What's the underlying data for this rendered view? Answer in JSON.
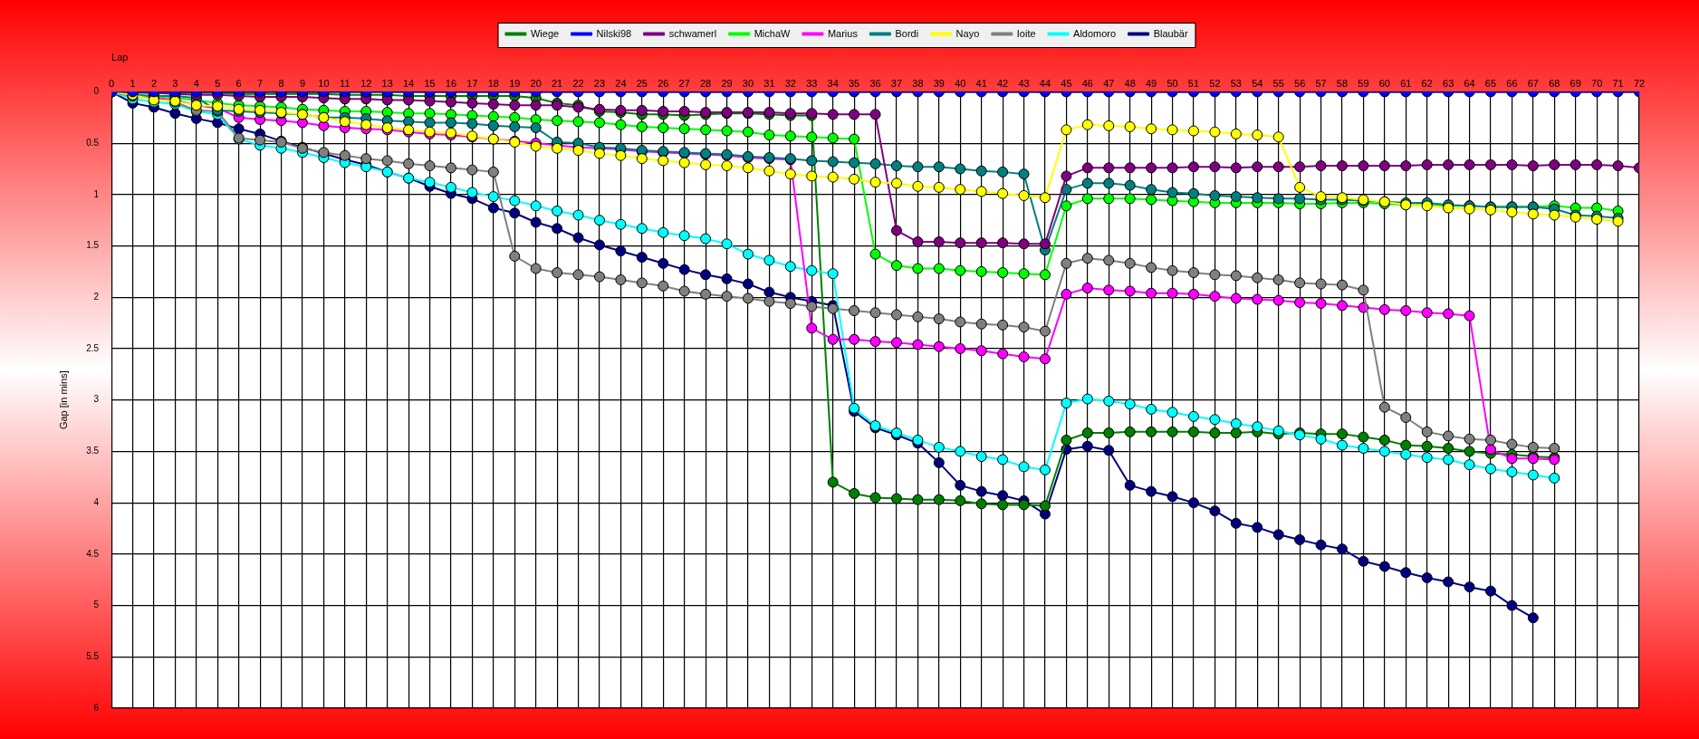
{
  "chart_data": {
    "type": "line",
    "xlabel": "Lap",
    "ylabel": "Gap [in mins]",
    "x": [
      0,
      1,
      2,
      3,
      4,
      5,
      6,
      7,
      8,
      9,
      10,
      11,
      12,
      13,
      14,
      15,
      16,
      17,
      18,
      19,
      20,
      21,
      22,
      23,
      24,
      25,
      26,
      27,
      28,
      29,
      30,
      31,
      32,
      33,
      34,
      35,
      36,
      37,
      38,
      39,
      40,
      41,
      42,
      43,
      44,
      45,
      46,
      47,
      48,
      49,
      50,
      51,
      52,
      53,
      54,
      55,
      56,
      57,
      58,
      59,
      60,
      61,
      62,
      63,
      64,
      65,
      66,
      67,
      68,
      69,
      70,
      71,
      72
    ],
    "xlim": [
      0,
      72
    ],
    "xticks": [
      0,
      1,
      2,
      3,
      4,
      5,
      6,
      7,
      8,
      9,
      10,
      11,
      12,
      13,
      14,
      15,
      16,
      17,
      18,
      19,
      20,
      21,
      22,
      23,
      24,
      25,
      26,
      27,
      28,
      29,
      30,
      31,
      32,
      33,
      34,
      35,
      36,
      37,
      38,
      39,
      40,
      41,
      42,
      43,
      44,
      45,
      46,
      47,
      48,
      49,
      50,
      51,
      52,
      53,
      54,
      55,
      56,
      57,
      58,
      59,
      60,
      61,
      62,
      63,
      64,
      65,
      66,
      67,
      68,
      69,
      70,
      71,
      72
    ],
    "ylim": [
      6,
      0
    ],
    "yticks": [
      0,
      0.5,
      1,
      1.5,
      2,
      2.5,
      3,
      3.5,
      4,
      4.5,
      5,
      5.5,
      6
    ],
    "grid": true,
    "legend": "top",
    "marker": "circle",
    "line_style": "solid",
    "series": [
      {
        "name": "Wiege",
        "color": "#008000",
        "values": [
          0,
          0.01,
          0.01,
          0.01,
          0.01,
          0.01,
          0.02,
          0.02,
          0.02,
          0.02,
          0.02,
          0.03,
          0.03,
          0.03,
          0.04,
          0.04,
          0.04,
          0.04,
          0.04,
          0.04,
          0.06,
          0.11,
          0.13,
          0.19,
          0.2,
          0.22,
          0.22,
          0.23,
          0.22,
          0.21,
          0.21,
          0.22,
          0.23,
          0.23,
          3.8,
          3.91,
          3.95,
          3.96,
          3.97,
          3.97,
          3.98,
          4.01,
          4.02,
          4.02,
          4.03,
          3.39,
          3.32,
          3.32,
          3.31,
          3.31,
          3.31,
          3.31,
          3.32,
          3.32,
          3.31,
          3.33,
          3.32,
          3.33,
          3.33,
          3.36,
          3.39,
          3.44,
          3.45,
          3.47,
          3.5,
          3.52,
          3.53,
          3.55,
          3.56,
          null,
          null,
          null,
          null
        ]
      },
      {
        "name": "Nilski98",
        "color": "#0000ff",
        "values": [
          0,
          0,
          0,
          0,
          0,
          0,
          0,
          0,
          0,
          0,
          0,
          0,
          0,
          0,
          0,
          0,
          0,
          0,
          0,
          0,
          0,
          0,
          0,
          0,
          0,
          0,
          0,
          0,
          0,
          0,
          0,
          0,
          0,
          0,
          0,
          0,
          0,
          0,
          0,
          0,
          0,
          0,
          0,
          0,
          0,
          0,
          0,
          0,
          0,
          0,
          0,
          0,
          0,
          0,
          0,
          0,
          0,
          0,
          0,
          0,
          0,
          0,
          0,
          0,
          0,
          0,
          0,
          0,
          0,
          0,
          0,
          0,
          0
        ]
      },
      {
        "name": "schwamerl",
        "color": "#800080",
        "values": [
          0,
          0,
          0.01,
          0.02,
          0.03,
          0.03,
          0.04,
          0.05,
          0.05,
          0.05,
          0.06,
          0.07,
          0.07,
          0.08,
          0.08,
          0.09,
          0.1,
          0.11,
          0.12,
          0.13,
          0.13,
          0.13,
          0.15,
          0.17,
          0.18,
          0.18,
          0.19,
          0.19,
          0.2,
          0.2,
          0.2,
          0.2,
          0.21,
          0.21,
          0.22,
          0.22,
          0.22,
          1.35,
          1.46,
          1.46,
          1.47,
          1.47,
          1.47,
          1.48,
          1.48,
          0.82,
          0.74,
          0.74,
          0.74,
          0.74,
          0.74,
          0.73,
          0.73,
          0.74,
          0.73,
          0.73,
          0.73,
          0.72,
          0.72,
          0.72,
          0.72,
          0.72,
          0.71,
          0.71,
          0.71,
          0.71,
          0.71,
          0.72,
          0.71,
          0.71,
          0.71,
          0.72,
          0.74
        ]
      },
      {
        "name": "MichaW",
        "color": "#00ff00",
        "values": [
          0,
          0.03,
          0.04,
          0.06,
          0.08,
          0.11,
          0.13,
          0.14,
          0.15,
          0.17,
          0.18,
          0.19,
          0.19,
          0.2,
          0.21,
          0.21,
          0.22,
          0.23,
          0.24,
          0.25,
          0.27,
          0.28,
          0.29,
          0.3,
          0.32,
          0.34,
          0.35,
          0.36,
          0.37,
          0.38,
          0.39,
          0.42,
          0.43,
          0.44,
          0.45,
          0.46,
          1.58,
          1.69,
          1.72,
          1.72,
          1.74,
          1.75,
          1.76,
          1.77,
          1.78,
          1.11,
          1.04,
          1.04,
          1.04,
          1.05,
          1.06,
          1.07,
          1.08,
          1.08,
          1.08,
          1.08,
          1.09,
          1.09,
          1.08,
          1.08,
          1.09,
          1.1,
          1.1,
          1.11,
          1.11,
          1.12,
          1.12,
          1.12,
          1.11,
          1.13,
          1.13,
          1.16,
          null
        ]
      },
      {
        "name": "Marius",
        "color": "#ff00ff",
        "values": [
          0,
          0.04,
          0.06,
          0.08,
          0.13,
          0.16,
          0.25,
          0.27,
          0.28,
          0.3,
          0.33,
          0.35,
          0.36,
          0.37,
          0.39,
          0.41,
          0.42,
          0.44,
          0.46,
          0.48,
          0.5,
          0.52,
          0.54,
          0.55,
          0.56,
          0.58,
          0.59,
          0.6,
          0.61,
          0.62,
          0.64,
          0.65,
          0.66,
          2.3,
          2.41,
          2.41,
          2.43,
          2.44,
          2.46,
          2.48,
          2.5,
          2.52,
          2.55,
          2.58,
          2.6,
          1.97,
          1.91,
          1.93,
          1.94,
          1.96,
          1.96,
          1.97,
          1.99,
          2.01,
          2.02,
          2.03,
          2.05,
          2.06,
          2.08,
          2.1,
          2.12,
          2.13,
          2.15,
          2.16,
          2.18,
          3.48,
          3.57,
          3.57,
          3.58,
          null,
          null,
          null,
          null
        ]
      },
      {
        "name": "Bordi",
        "color": "#008080",
        "values": [
          0,
          0.03,
          0.04,
          0.04,
          0.06,
          0.18,
          0.19,
          0.2,
          0.21,
          0.22,
          0.25,
          0.25,
          0.26,
          0.28,
          0.29,
          0.3,
          0.3,
          0.31,
          0.33,
          0.34,
          0.35,
          0.49,
          0.5,
          0.54,
          0.55,
          0.57,
          0.58,
          0.59,
          0.6,
          0.61,
          0.63,
          0.64,
          0.65,
          0.67,
          0.68,
          0.69,
          0.7,
          0.72,
          0.73,
          0.73,
          0.75,
          0.77,
          0.78,
          0.8,
          1.54,
          0.95,
          0.89,
          0.89,
          0.91,
          0.95,
          0.98,
          0.99,
          1.01,
          1.02,
          1.03,
          1.04,
          1.04,
          1.05,
          1.05,
          1.06,
          1.07,
          1.08,
          1.08,
          1.1,
          1.11,
          1.12,
          1.12,
          1.12,
          1.14,
          1.2,
          1.21,
          1.23,
          null
        ]
      },
      {
        "name": "Nayo",
        "color": "#ffff00",
        "values": [
          0,
          0.03,
          0.08,
          0.09,
          0.13,
          0.14,
          0.17,
          0.18,
          0.2,
          0.22,
          0.25,
          0.29,
          0.32,
          0.35,
          0.37,
          0.39,
          0.4,
          0.43,
          0.46,
          0.49,
          0.53,
          0.55,
          0.57,
          0.6,
          0.62,
          0.65,
          0.67,
          0.69,
          0.71,
          0.72,
          0.74,
          0.77,
          0.8,
          0.82,
          0.83,
          0.85,
          0.88,
          0.89,
          0.92,
          0.93,
          0.95,
          0.97,
          0.99,
          1.01,
          1.03,
          0.37,
          0.32,
          0.33,
          0.34,
          0.36,
          0.37,
          0.38,
          0.39,
          0.41,
          0.42,
          0.44,
          0.93,
          1.02,
          1.03,
          1.05,
          1.07,
          1.1,
          1.11,
          1.13,
          1.14,
          1.15,
          1.17,
          1.19,
          1.2,
          1.22,
          1.24,
          1.26,
          null
        ]
      },
      {
        "name": "Ioite",
        "color": "#808080",
        "values": [
          0,
          0.04,
          0.07,
          0.1,
          0.18,
          0.19,
          0.45,
          0.47,
          0.49,
          0.55,
          0.59,
          0.62,
          0.65,
          0.67,
          0.7,
          0.72,
          0.74,
          0.76,
          0.78,
          1.6,
          1.72,
          1.76,
          1.78,
          1.8,
          1.83,
          1.86,
          1.89,
          1.94,
          1.97,
          1.99,
          2.01,
          2.04,
          2.06,
          2.09,
          2.11,
          2.13,
          2.15,
          2.17,
          2.19,
          2.21,
          2.24,
          2.26,
          2.27,
          2.29,
          2.33,
          1.67,
          1.62,
          1.64,
          1.67,
          1.71,
          1.74,
          1.76,
          1.78,
          1.79,
          1.81,
          1.83,
          1.86,
          1.87,
          1.88,
          1.93,
          3.07,
          3.17,
          3.31,
          3.35,
          3.38,
          3.39,
          3.43,
          3.46,
          3.47,
          null,
          null,
          null,
          null
        ]
      },
      {
        "name": "Aldomoro",
        "color": "#00ffff",
        "values": [
          0,
          0.07,
          0.1,
          0.12,
          0.19,
          0.22,
          0.46,
          0.52,
          0.55,
          0.59,
          0.64,
          0.69,
          0.73,
          0.78,
          0.84,
          0.88,
          0.93,
          0.98,
          1.02,
          1.06,
          1.11,
          1.16,
          1.2,
          1.25,
          1.29,
          1.33,
          1.37,
          1.4,
          1.43,
          1.48,
          1.58,
          1.64,
          1.7,
          1.74,
          1.77,
          3.08,
          3.25,
          3.32,
          3.39,
          3.46,
          3.5,
          3.55,
          3.58,
          3.65,
          3.68,
          3.03,
          2.99,
          3.01,
          3.04,
          3.09,
          3.12,
          3.16,
          3.19,
          3.23,
          3.26,
          3.3,
          3.34,
          3.38,
          3.44,
          3.47,
          3.5,
          3.53,
          3.56,
          3.58,
          3.63,
          3.67,
          3.7,
          3.73,
          3.76,
          null,
          null,
          null,
          null
        ]
      },
      {
        "name": "Blaubär",
        "color": "#000080",
        "values": [
          0,
          0.11,
          0.15,
          0.21,
          0.26,
          0.3,
          0.36,
          0.41,
          0.48,
          0.54,
          0.6,
          0.66,
          0.71,
          0.78,
          0.84,
          0.92,
          0.99,
          1.04,
          1.13,
          1.18,
          1.27,
          1.33,
          1.42,
          1.49,
          1.55,
          1.61,
          1.67,
          1.73,
          1.78,
          1.82,
          1.87,
          1.95,
          2,
          2.04,
          2.08,
          3.11,
          3.27,
          3.34,
          3.42,
          3.61,
          3.83,
          3.89,
          3.93,
          3.98,
          4.11,
          3.48,
          3.45,
          3.49,
          3.83,
          3.89,
          3.94,
          4,
          4.08,
          4.2,
          4.24,
          4.31,
          4.36,
          4.41,
          4.45,
          4.57,
          4.62,
          4.68,
          4.73,
          4.77,
          4.82,
          4.86,
          5,
          5.12,
          null,
          null,
          null,
          null,
          null
        ]
      }
    ]
  }
}
